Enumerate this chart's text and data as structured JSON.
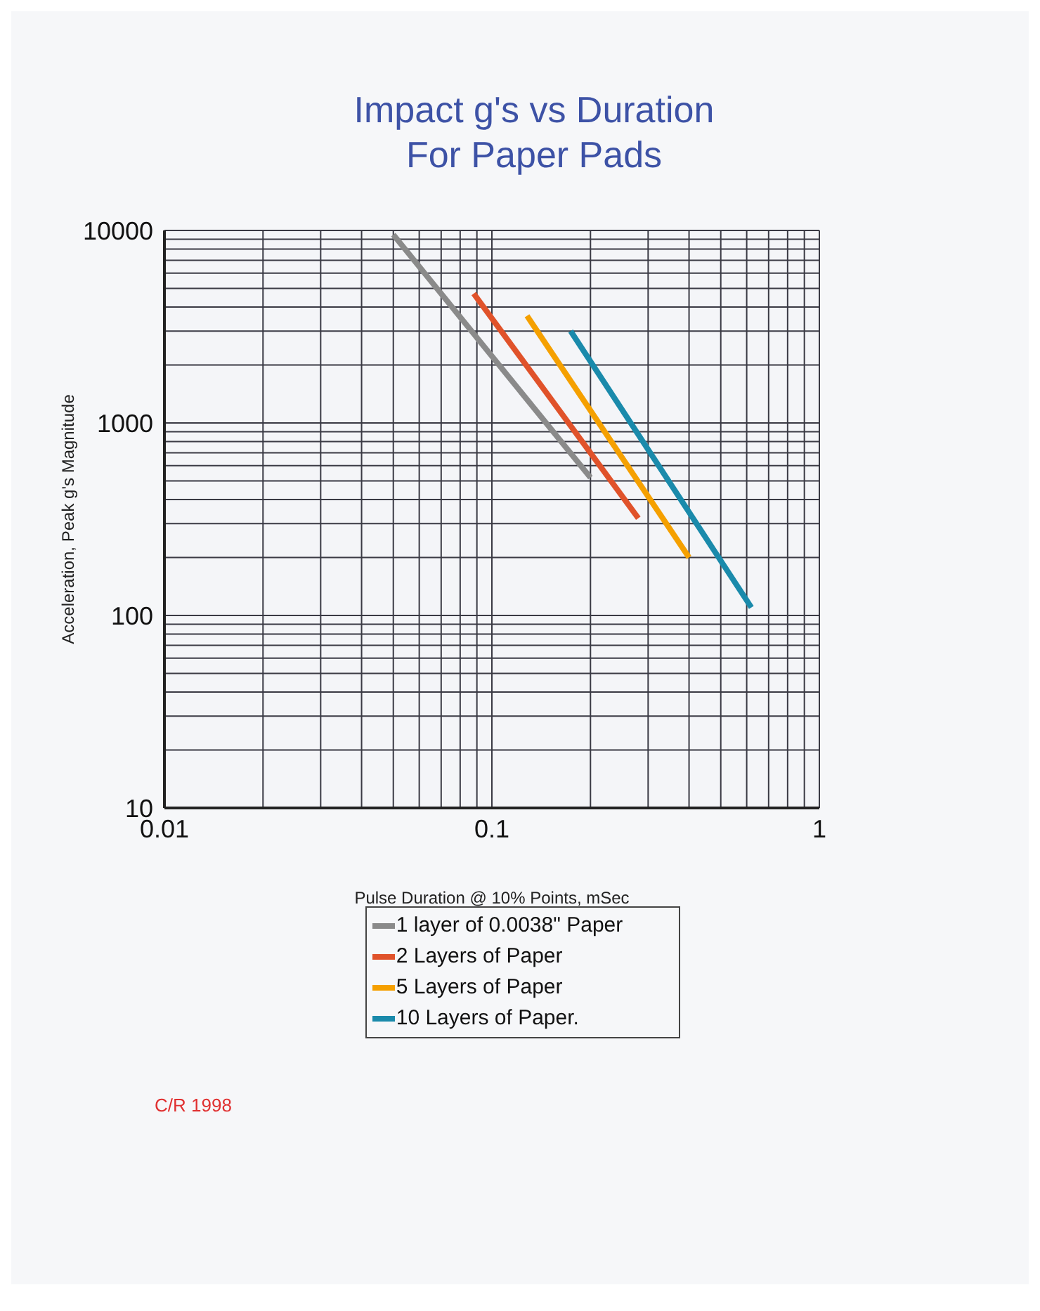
{
  "chart_data": {
    "type": "line",
    "title": "Impact g's vs Duration\nFor Paper Pads",
    "xlabel": "Pulse Duration @ 10% Points,  mSec",
    "ylabel": "Acceleration, Peak g's  Magnitude",
    "log": "xy",
    "grid": true,
    "legend": "bottom",
    "marker": "none",
    "line_style": "solid",
    "xlim": [
      0.01,
      1
    ],
    "ylim": [
      10,
      10000
    ],
    "xticks": [
      0.01,
      {
        "value": 0.02,
        "label": null
      },
      {
        "value": 0.03,
        "label": null
      },
      {
        "value": 0.04,
        "label": null
      },
      {
        "value": 0.05,
        "label": null
      },
      {
        "value": 0.06,
        "label": null
      },
      {
        "value": 0.07,
        "label": null
      },
      {
        "value": 0.08,
        "label": null
      },
      {
        "value": 0.09,
        "label": null
      },
      0.1,
      {
        "value": 0.2,
        "label": null
      },
      {
        "value": 0.3,
        "label": null
      },
      {
        "value": 0.4,
        "label": null
      },
      {
        "value": 0.5,
        "label": null
      },
      {
        "value": 0.6,
        "label": null
      },
      {
        "value": 0.7,
        "label": null
      },
      {
        "value": 0.8,
        "label": null
      },
      {
        "value": 0.9,
        "label": null
      },
      1
    ],
    "yticks": [
      10,
      {
        "value": 20,
        "label": null
      },
      {
        "value": 30,
        "label": null
      },
      {
        "value": 40,
        "label": null
      },
      {
        "value": 50,
        "label": null
      },
      {
        "value": 60,
        "label": null
      },
      {
        "value": 70,
        "label": null
      },
      {
        "value": 80,
        "label": null
      },
      {
        "value": 90,
        "label": null
      },
      100,
      {
        "value": 200,
        "label": null
      },
      {
        "value": 300,
        "label": null
      },
      {
        "value": 400,
        "label": null
      },
      {
        "value": 500,
        "label": null
      },
      {
        "value": 600,
        "label": null
      },
      {
        "value": 700,
        "label": null
      },
      {
        "value": 800,
        "label": null
      },
      {
        "value": 900,
        "label": null
      },
      1000,
      {
        "value": 2000,
        "label": null
      },
      {
        "value": 3000,
        "label": null
      },
      {
        "value": 4000,
        "label": null
      },
      {
        "value": 5000,
        "label": null
      },
      {
        "value": 6000,
        "label": null
      },
      {
        "value": 7000,
        "label": null
      },
      {
        "value": 8000,
        "label": null
      },
      {
        "value": 9000,
        "label": null
      },
      10000
    ],
    "series": [
      {
        "name": "1 layer of 0.0038\" Paper",
        "color": "#8a8a8a",
        "x": [
          0.05,
          0.2
        ],
        "values": [
          9500,
          520
        ]
      },
      {
        "name": "2 Layers of Paper",
        "color": "#e0522a",
        "x": [
          0.088,
          0.28
        ],
        "values": [
          4700,
          320
        ]
      },
      {
        "name": "5 Layers of Paper",
        "color": "#f5a000",
        "x": [
          0.128,
          0.4
        ],
        "values": [
          3600,
          200
        ]
      },
      {
        "name": "10 Layers of Paper.",
        "color": "#1a8aab",
        "x": [
          0.174,
          0.62
        ],
        "values": [
          3000,
          110
        ]
      }
    ],
    "annotations": [
      "C/R  1998"
    ]
  }
}
